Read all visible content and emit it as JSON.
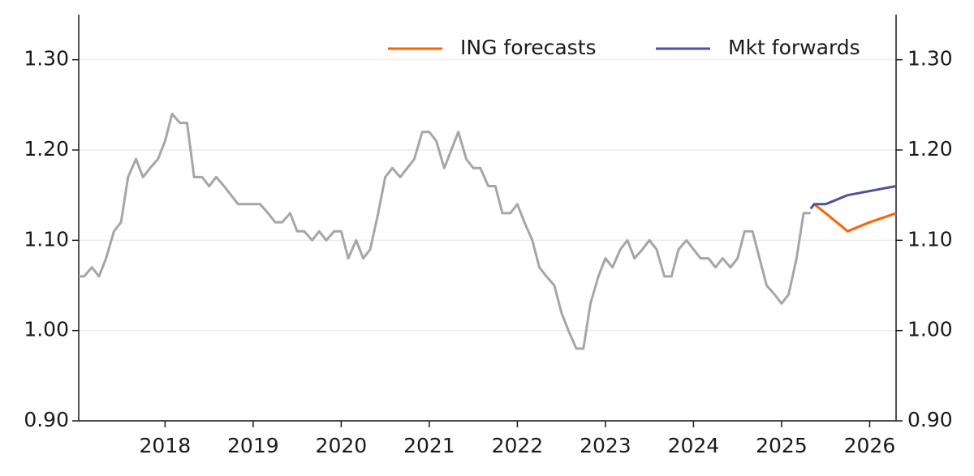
{
  "chart_data": {
    "type": "line",
    "xlim": [
      2017.02,
      2026.3
    ],
    "xticks": [
      2018,
      2019,
      2020,
      2021,
      2022,
      2023,
      2024,
      2025,
      2026
    ],
    "ylim": [
      0.9,
      1.35
    ],
    "yticks": [
      {
        "value": 0.9,
        "label": "0.90"
      },
      {
        "value": 1.0,
        "label": "1.00"
      },
      {
        "value": 1.1,
        "label": "1.10"
      },
      {
        "value": 1.2,
        "label": "1.20"
      },
      {
        "value": 1.3,
        "label": "1.30"
      }
    ],
    "y2lim": [
      0.9,
      1.35
    ],
    "y2ticks": [
      {
        "value": 0.9,
        "label": "0.90"
      },
      {
        "value": 1.0,
        "label": "1.00"
      },
      {
        "value": 1.1,
        "label": "1.10"
      },
      {
        "value": 1.2,
        "label": "1.20"
      },
      {
        "value": 1.3,
        "label": "1.30"
      }
    ],
    "grid": true,
    "legend": "top",
    "series": [
      {
        "color": "#a6a6a6",
        "x": [
          2017.02,
          2017.08,
          2017.17,
          2017.25,
          2017.33,
          2017.42,
          2017.5,
          2017.58,
          2017.67,
          2017.75,
          2017.83,
          2017.92,
          2018,
          2018.08,
          2018.17,
          2018.25,
          2018.33,
          2018.42,
          2018.5,
          2018.58,
          2018.67,
          2018.75,
          2018.83,
          2018.92,
          2019,
          2019.08,
          2019.17,
          2019.25,
          2019.33,
          2019.42,
          2019.5,
          2019.58,
          2019.67,
          2019.75,
          2019.83,
          2019.92,
          2020,
          2020.08,
          2020.17,
          2020.25,
          2020.33,
          2020.42,
          2020.5,
          2020.58,
          2020.67,
          2020.75,
          2020.83,
          2020.92,
          2021,
          2021.08,
          2021.17,
          2021.25,
          2021.33,
          2021.42,
          2021.5,
          2021.58,
          2021.67,
          2021.75,
          2021.83,
          2021.92,
          2022,
          2022.08,
          2022.17,
          2022.25,
          2022.33,
          2022.42,
          2022.5,
          2022.58,
          2022.67,
          2022.75,
          2022.83,
          2022.92,
          2023,
          2023.08,
          2023.17,
          2023.25,
          2023.33,
          2023.42,
          2023.5,
          2023.58,
          2023.67,
          2023.75,
          2023.83,
          2023.92,
          2024,
          2024.08,
          2024.17,
          2024.25,
          2024.33,
          2024.42,
          2024.5,
          2024.58,
          2024.67,
          2024.75,
          2024.83,
          2024.92,
          2025,
          2025.08,
          2025.17,
          2025.25,
          2025.33
        ],
        "values": [
          1.06,
          1.06,
          1.07,
          1.06,
          1.08,
          1.11,
          1.12,
          1.17,
          1.19,
          1.17,
          1.18,
          1.19,
          1.21,
          1.24,
          1.23,
          1.23,
          1.17,
          1.17,
          1.16,
          1.17,
          1.16,
          1.15,
          1.14,
          1.14,
          1.14,
          1.14,
          1.13,
          1.12,
          1.12,
          1.13,
          1.11,
          1.11,
          1.1,
          1.11,
          1.1,
          1.11,
          1.11,
          1.08,
          1.1,
          1.08,
          1.09,
          1.13,
          1.17,
          1.18,
          1.17,
          1.18,
          1.19,
          1.22,
          1.22,
          1.21,
          1.18,
          1.2,
          1.22,
          1.19,
          1.18,
          1.18,
          1.16,
          1.16,
          1.13,
          1.13,
          1.14,
          1.12,
          1.1,
          1.07,
          1.06,
          1.05,
          1.02,
          1.0,
          0.98,
          0.98,
          1.03,
          1.06,
          1.08,
          1.07,
          1.09,
          1.1,
          1.08,
          1.09,
          1.1,
          1.09,
          1.06,
          1.06,
          1.09,
          1.1,
          1.09,
          1.08,
          1.08,
          1.07,
          1.08,
          1.07,
          1.08,
          1.11,
          1.11,
          1.08,
          1.05,
          1.04,
          1.03,
          1.04,
          1.08,
          1.13,
          1.13
        ]
      },
      {
        "name": "ING forecasts",
        "color": "#ff6200",
        "x": [
          2025.37,
          2025.5,
          2025.75,
          2026,
          2026.3
        ],
        "values": [
          1.14,
          1.13,
          1.11,
          1.12,
          1.13
        ]
      },
      {
        "name": "Mkt forwards",
        "color": "#525199",
        "x": [
          2025.33,
          2025.37,
          2025.5,
          2025.75,
          2026.3
        ],
        "values": [
          1.135,
          1.14,
          1.14,
          1.15,
          1.16
        ]
      }
    ]
  }
}
